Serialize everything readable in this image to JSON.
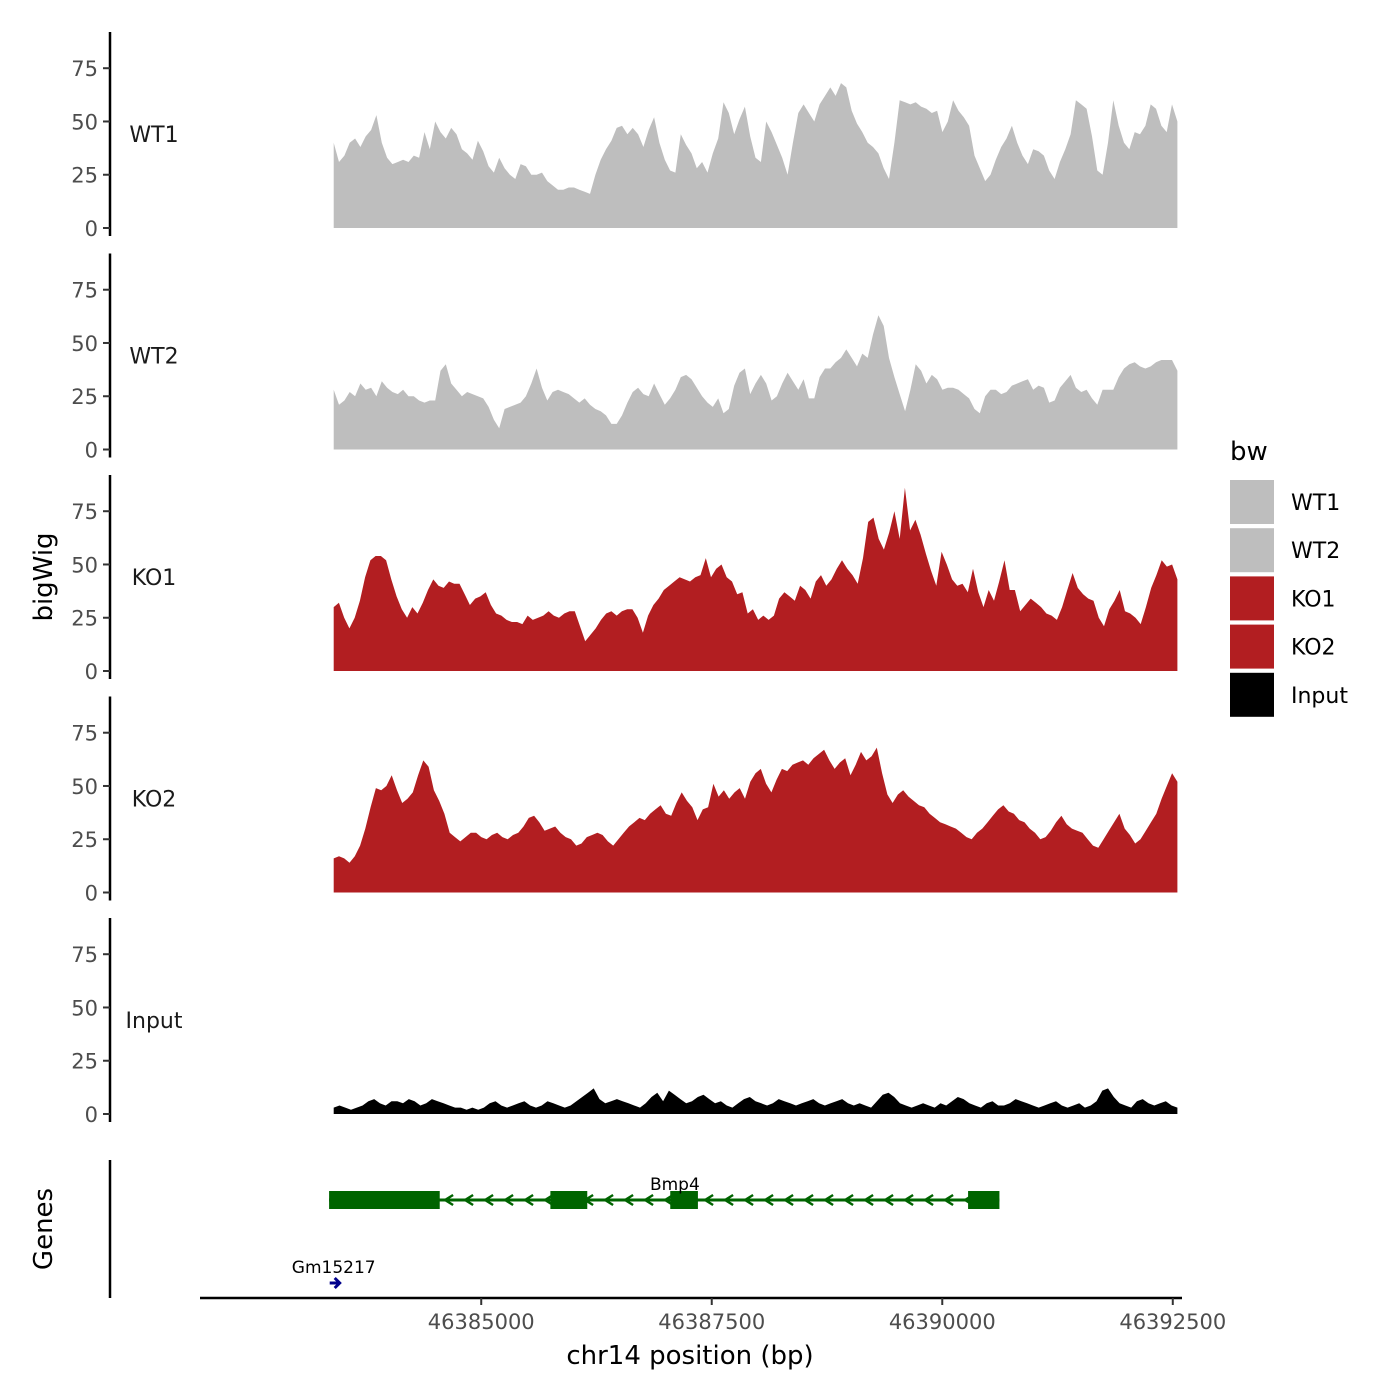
{
  "chart_data": {
    "type": "area",
    "ylabel": "bigWig",
    "xlabel": "chr14 position (bp)",
    "genes_label": "Genes",
    "ylim": [
      0,
      92
    ],
    "y_ticks": [
      0,
      25,
      50,
      75
    ],
    "xlim": [
      46381950,
      46392600
    ],
    "x_ticks": [
      46385000,
      46387500,
      46390000,
      46392500
    ],
    "x_tick_labels": [
      "46385000",
      "46387500",
      "46390000",
      "46392500"
    ],
    "legend": {
      "title": "bw",
      "position": "right",
      "entries": [
        {
          "label": "WT1",
          "color": "#bebebe"
        },
        {
          "label": "WT2",
          "color": "#bebebe"
        },
        {
          "label": "KO1",
          "color": "#b21e21"
        },
        {
          "label": "KO2",
          "color": "#b21e21"
        },
        {
          "label": "Input",
          "color": "#000000"
        }
      ]
    },
    "series": [
      {
        "name": "WT1",
        "color": "#bebebe",
        "x_start": 46383400,
        "x_end": 46392550,
        "values": [
          40,
          31,
          34,
          40,
          42,
          38,
          43,
          46,
          53,
          40,
          33,
          30,
          31,
          32,
          31,
          34,
          33,
          45,
          37,
          50,
          45,
          42,
          47,
          44,
          37,
          35,
          32,
          41,
          36,
          29,
          26,
          33,
          28,
          25,
          23,
          30,
          29,
          25,
          25,
          26,
          22,
          20,
          18,
          18,
          19,
          19,
          18,
          17,
          16,
          25,
          32,
          37,
          41,
          47,
          48,
          44,
          47,
          44,
          38,
          46,
          52,
          40,
          32,
          27,
          26,
          44,
          39,
          35,
          28,
          31,
          26,
          35,
          42,
          59,
          54,
          44,
          51,
          57,
          43,
          33,
          31,
          50,
          45,
          39,
          33,
          25,
          40,
          54,
          58,
          54,
          50,
          58,
          62,
          66,
          62,
          68,
          66,
          55,
          49,
          45,
          40,
          38,
          35,
          28,
          23,
          40,
          60,
          59,
          58,
          59,
          57,
          56,
          54,
          55,
          45,
          50,
          60,
          55,
          52,
          48,
          34,
          28,
          22,
          25,
          32,
          38,
          42,
          48,
          40,
          34,
          30,
          37,
          36,
          34,
          27,
          23,
          31,
          37,
          44,
          60,
          58,
          56,
          43,
          27,
          25,
          40,
          60,
          48,
          40,
          37,
          45,
          44,
          48,
          58,
          56,
          48,
          45,
          58,
          50
        ]
      },
      {
        "name": "WT2",
        "color": "#bebebe",
        "x_start": 46383400,
        "x_end": 46392550,
        "values": [
          28,
          21,
          23,
          27,
          25,
          31,
          28,
          29,
          25,
          32,
          29,
          27,
          26,
          28,
          25,
          25,
          23,
          22,
          23,
          23,
          37,
          40,
          31,
          28,
          25,
          27,
          26,
          25,
          24,
          20,
          14,
          10,
          19,
          20,
          21,
          22,
          25,
          31,
          38,
          29,
          23,
          27,
          28,
          27,
          26,
          24,
          22,
          24,
          21,
          19,
          18,
          16,
          12,
          12,
          16,
          22,
          27,
          29,
          26,
          25,
          31,
          26,
          21,
          24,
          28,
          34,
          35,
          33,
          29,
          25,
          22,
          20,
          24,
          17,
          19,
          30,
          36,
          38,
          26,
          31,
          35,
          31,
          23,
          25,
          31,
          36,
          32,
          28,
          33,
          24,
          24,
          34,
          38,
          38,
          41,
          43,
          47,
          43,
          39,
          45,
          43,
          54,
          63,
          58,
          43,
          34,
          26,
          18,
          28,
          40,
          37,
          31,
          35,
          33,
          28,
          29,
          29,
          28,
          26,
          24,
          19,
          17,
          25,
          28,
          28,
          26,
          27,
          30,
          31,
          32,
          33,
          28,
          30,
          29,
          22,
          23,
          29,
          32,
          35,
          29,
          27,
          28,
          24,
          21,
          28,
          28,
          28,
          34,
          38,
          40,
          41,
          39,
          38,
          39,
          41,
          42,
          42,
          42,
          37
        ]
      },
      {
        "name": "KO1",
        "color": "#b21e21",
        "x_start": 46383400,
        "x_end": 46392550,
        "values": [
          30,
          32,
          25,
          20,
          25,
          33,
          44,
          52,
          54,
          54,
          52,
          43,
          35,
          29,
          25,
          30,
          27,
          32,
          38,
          43,
          40,
          39,
          42,
          41,
          41,
          36,
          31,
          34,
          35,
          37,
          31,
          27,
          26,
          24,
          23,
          23,
          22,
          26,
          24,
          25,
          26,
          28,
          26,
          25,
          27,
          28,
          28,
          21,
          14,
          17,
          20,
          24,
          27,
          28,
          26,
          28,
          29,
          29,
          25,
          18,
          26,
          31,
          34,
          38,
          40,
          42,
          44,
          43,
          42,
          44,
          45,
          53,
          44,
          48,
          50,
          44,
          42,
          36,
          37,
          27,
          29,
          24,
          26,
          24,
          26,
          34,
          37,
          35,
          33,
          40,
          38,
          34,
          42,
          45,
          40,
          43,
          48,
          52,
          48,
          45,
          41,
          53,
          70,
          72,
          62,
          57,
          65,
          75,
          62,
          86,
          66,
          71,
          64,
          55,
          47,
          40,
          56,
          50,
          43,
          40,
          41,
          37,
          48,
          37,
          30,
          38,
          33,
          42,
          52,
          38,
          38,
          28,
          31,
          34,
          32,
          30,
          27,
          26,
          24,
          30,
          38,
          46,
          39,
          36,
          34,
          33,
          25,
          21,
          29,
          33,
          38,
          28,
          27,
          25,
          22,
          30,
          39,
          45,
          52,
          49,
          50,
          43
        ]
      },
      {
        "name": "KO2",
        "color": "#b21e21",
        "x_start": 46383400,
        "x_end": 46392550,
        "values": [
          16,
          17,
          16,
          14,
          17,
          22,
          30,
          40,
          49,
          48,
          50,
          55,
          48,
          42,
          44,
          47,
          55,
          62,
          59,
          48,
          43,
          37,
          28,
          26,
          24,
          26,
          28,
          28,
          26,
          25,
          27,
          28,
          26,
          25,
          27,
          28,
          31,
          35,
          36,
          33,
          29,
          30,
          31,
          28,
          26,
          25,
          22,
          23,
          26,
          27,
          28,
          27,
          24,
          22,
          25,
          28,
          31,
          33,
          35,
          34,
          37,
          39,
          41,
          37,
          36,
          42,
          47,
          43,
          40,
          34,
          39,
          40,
          51,
          45,
          48,
          44,
          47,
          49,
          44,
          52,
          56,
          58,
          51,
          47,
          53,
          58,
          57,
          60,
          61,
          62,
          60,
          63,
          65,
          67,
          62,
          58,
          61,
          63,
          55,
          60,
          66,
          62,
          64,
          68,
          56,
          46,
          42,
          46,
          48,
          45,
          43,
          41,
          40,
          37,
          35,
          33,
          32,
          31,
          30,
          28,
          26,
          25,
          28,
          30,
          33,
          36,
          39,
          41,
          38,
          37,
          34,
          33,
          30,
          28,
          25,
          26,
          29,
          33,
          36,
          32,
          30,
          29,
          28,
          25,
          22,
          21,
          25,
          29,
          33,
          37,
          30,
          27,
          23,
          25,
          29,
          33,
          37,
          44,
          50,
          56,
          52
        ]
      },
      {
        "name": "Input",
        "color": "#000000",
        "x_start": 46383400,
        "x_end": 46392550,
        "values": [
          3,
          4,
          3,
          2,
          3,
          4,
          6,
          7,
          5,
          4,
          6,
          6,
          5,
          7,
          6,
          4,
          5,
          7,
          6,
          5,
          4,
          3,
          3,
          2,
          3,
          2,
          3,
          5,
          6,
          4,
          3,
          4,
          5,
          6,
          4,
          3,
          4,
          6,
          5,
          4,
          3,
          4,
          6,
          8,
          10,
          12,
          7,
          5,
          6,
          7,
          6,
          5,
          4,
          3,
          5,
          8,
          10,
          6,
          11,
          9,
          7,
          5,
          6,
          8,
          9,
          7,
          5,
          6,
          4,
          3,
          5,
          7,
          8,
          6,
          5,
          4,
          5,
          7,
          6,
          5,
          4,
          5,
          6,
          7,
          5,
          4,
          5,
          6,
          7,
          5,
          4,
          5,
          4,
          3,
          6,
          9,
          10,
          8,
          5,
          4,
          3,
          4,
          5,
          4,
          3,
          5,
          4,
          6,
          8,
          7,
          5,
          4,
          3,
          5,
          6,
          4,
          4,
          5,
          7,
          6,
          5,
          4,
          3,
          4,
          5,
          6,
          4,
          3,
          4,
          5,
          3,
          4,
          6,
          11,
          12,
          8,
          5,
          4,
          3,
          6,
          7,
          5,
          4,
          5,
          6,
          4,
          3
        ]
      }
    ],
    "genes": [
      {
        "name": "Gm15217",
        "color": "#00008b",
        "strand": "+",
        "start": 46383400,
        "end": 46383480,
        "row": 2,
        "exons": [
          [
            46383400,
            46383480
          ]
        ]
      },
      {
        "name": "Bmp4",
        "color": "#006400",
        "strand": "-",
        "start": 46383350,
        "end": 46390620,
        "row": 1,
        "exons": [
          [
            46383350,
            46384550
          ],
          [
            46385750,
            46386150
          ],
          [
            46387050,
            46387350
          ],
          [
            46390280,
            46390620
          ]
        ]
      }
    ]
  }
}
